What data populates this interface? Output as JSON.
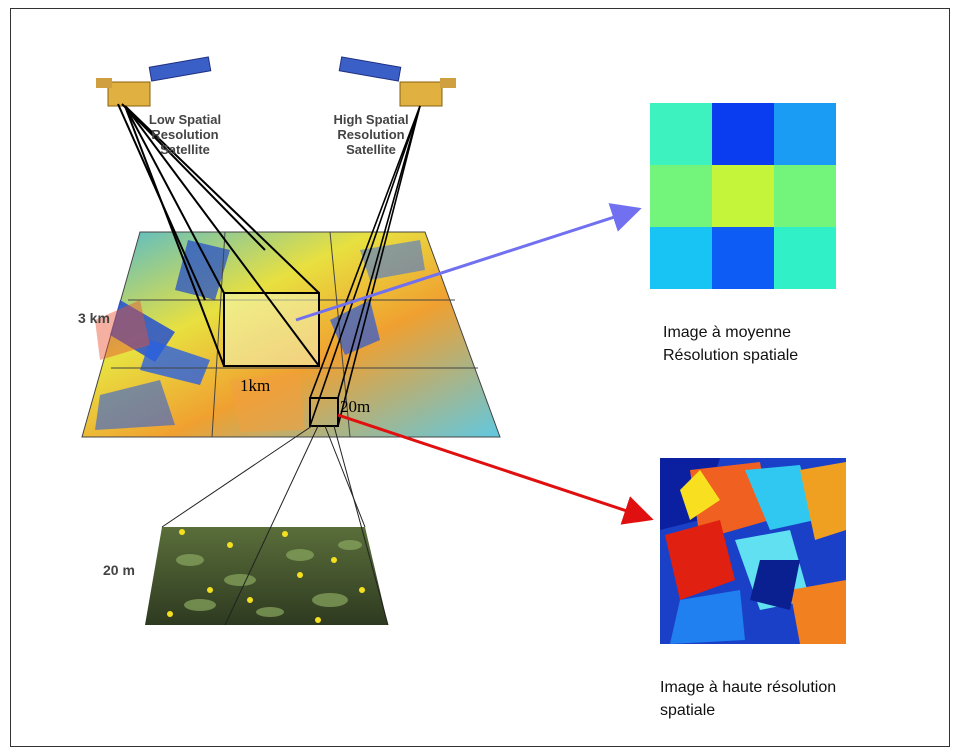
{
  "satellites": {
    "low": "Low Spatial\nResolution\nSatellite",
    "high": "High Spatial\nResolution\nSatellite"
  },
  "labels": {
    "scale_3km": "3 km",
    "scale_1km": "1km",
    "scale_20m_map": "20m",
    "scale_20m_photo": "20 m"
  },
  "captions": {
    "medium": "Image à moyenne\nRésolution spatiale",
    "high": "Image à haute résolution\nspatiale"
  },
  "medium_grid": {
    "colors": [
      "#3ef2c0",
      "#0a3cf0",
      "#1a9cf4",
      "#72f57a",
      "#c4f53a",
      "#72f57a",
      "#18c4f4",
      "#0e5cf6",
      "#30f0c8"
    ]
  },
  "colors": {
    "arrow_medium": "#7070f0",
    "arrow_high": "#e01010"
  }
}
